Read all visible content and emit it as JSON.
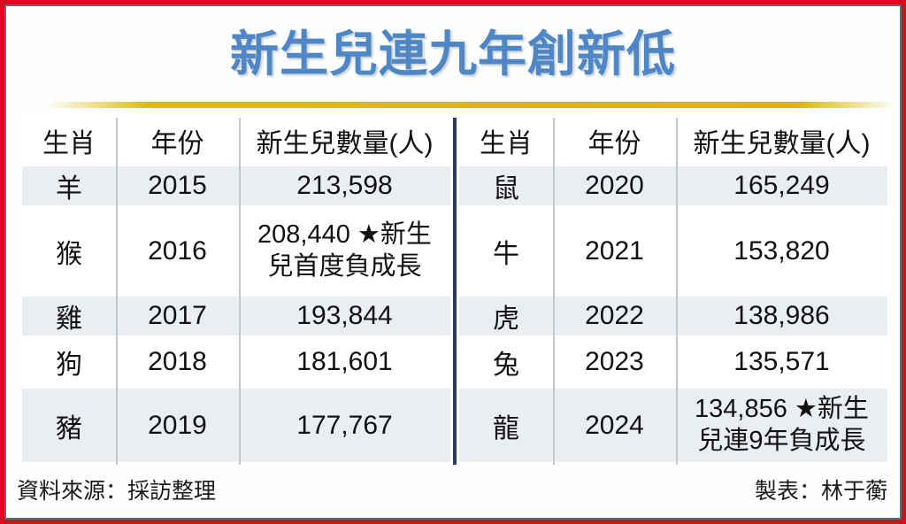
{
  "title": "新生兒連九年創新低",
  "tables": [
    {
      "headers": [
        "生肖",
        "年份",
        "新生兒數量(人)"
      ],
      "rows": [
        [
          "羊",
          "2015",
          "213,598"
        ],
        [
          "猴",
          "2016",
          "208,440 ★新生兒首度負成長"
        ],
        [
          "雞",
          "2017",
          "193,844"
        ],
        [
          "狗",
          "2018",
          "181,601"
        ],
        [
          "豬",
          "2019",
          "177,767"
        ]
      ]
    },
    {
      "headers": [
        "生肖",
        "年份",
        "新生兒數量(人)"
      ],
      "rows": [
        [
          "鼠",
          "2020",
          "165,249"
        ],
        [
          "牛",
          "2021",
          "153,820"
        ],
        [
          "虎",
          "2022",
          "138,986"
        ],
        [
          "兔",
          "2023",
          "135,571"
        ],
        [
          "龍",
          "2024",
          "134,856 ★新生兒連9年負成長"
        ]
      ]
    }
  ],
  "footer": {
    "source": "資料來源：採訪整理",
    "credit": "製表：林于蘅"
  },
  "colors": {
    "title_blue": "#4E86C6",
    "border_red": "#D0111B",
    "inner_border": "#5C6B7A",
    "gold_bar": "#DDBB11",
    "alt_row": "#EAEEF3",
    "column_divider": "#C2C7CD",
    "center_divider": "#2B3A5F"
  },
  "chart_data": {
    "type": "table",
    "title": "新生兒連九年創新低",
    "columns": [
      "生肖",
      "年份",
      "新生兒數量(人)"
    ],
    "rows": [
      [
        "羊",
        2015,
        213598
      ],
      [
        "猴",
        2016,
        208440
      ],
      [
        "雞",
        2017,
        193844
      ],
      [
        "狗",
        2018,
        181601
      ],
      [
        "豬",
        2019,
        177767
      ],
      [
        "鼠",
        2020,
        165249
      ],
      [
        "牛",
        2021,
        153820
      ],
      [
        "虎",
        2022,
        138986
      ],
      [
        "兔",
        2023,
        135571
      ],
      [
        "龍",
        2024,
        134856
      ]
    ],
    "annotations": [
      {
        "year": 2016,
        "text": "★新生兒首度負成長"
      },
      {
        "year": 2024,
        "text": "★新生兒連9年負成長"
      }
    ]
  }
}
